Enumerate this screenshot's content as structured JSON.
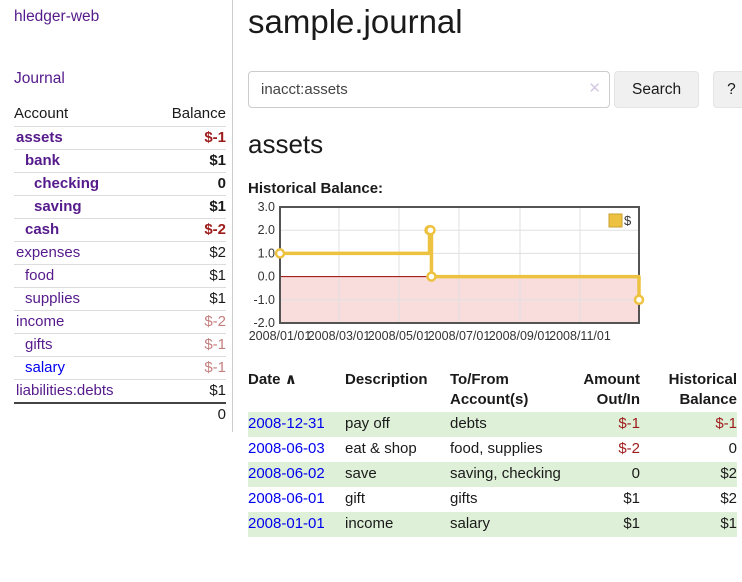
{
  "app": {
    "brand": "hledger-web"
  },
  "sidebar": {
    "journal_link": "Journal",
    "accounts_table": {
      "account_header": "Account",
      "balance_header": "Balance",
      "rows": [
        {
          "name": "assets",
          "balance": "$-1",
          "indent": 1,
          "bold": true
        },
        {
          "name": "bank",
          "balance": "$1",
          "indent": 2,
          "bold": true
        },
        {
          "name": "checking",
          "balance": "0",
          "indent": 3,
          "bold": true
        },
        {
          "name": "saving",
          "balance": "$1",
          "indent": 3,
          "bold": true
        },
        {
          "name": "cash",
          "balance": "$-2",
          "indent": 2,
          "bold": true
        },
        {
          "name": "expenses",
          "balance": "$2",
          "indent": 1,
          "bold": false
        },
        {
          "name": "food",
          "balance": "$1",
          "indent": 2,
          "bold": false
        },
        {
          "name": "supplies",
          "balance": "$1",
          "indent": 2,
          "bold": false
        },
        {
          "name": "income",
          "balance": "$-2",
          "indent": 1,
          "bold": false
        },
        {
          "name": "gifts",
          "balance": "$-1",
          "indent": 2,
          "bold": false
        },
        {
          "name": "salary",
          "balance": "$-1",
          "indent": 2,
          "bold": false,
          "unvisited": true
        },
        {
          "name": "liabilities:debts",
          "balance": "$1",
          "indent": 1,
          "bold": false
        }
      ],
      "total": "0"
    }
  },
  "header": {
    "title": "sample.journal"
  },
  "search": {
    "query": "inacct:assets",
    "clear_icon": "✕",
    "button_label": "Search",
    "help_label": "?"
  },
  "account_view": {
    "title": "assets",
    "chart_label": "Historical Balance:"
  },
  "chart_data": {
    "type": "line",
    "title": "Historical Balance",
    "ylim": [
      -2,
      3
    ],
    "yticks": [
      3.0,
      2.0,
      1.0,
      0.0,
      -1.0,
      -2.0
    ],
    "x_span_days": 365,
    "xticks": [
      {
        "label": "2008/01/01",
        "day": 0
      },
      {
        "label": "2008/03/01",
        "day": 60
      },
      {
        "label": "2008/05/01",
        "day": 121
      },
      {
        "label": "2008/07/01",
        "day": 182
      },
      {
        "label": "2008/09/01",
        "day": 244
      },
      {
        "label": "2008/11/01",
        "day": 305
      }
    ],
    "series": [
      {
        "name": "$",
        "color": "#edc240",
        "step": true,
        "points": [
          {
            "date": "2008-01-01",
            "day": 0,
            "value": 1
          },
          {
            "date": "2008-06-01",
            "day": 152,
            "value": 2
          },
          {
            "date": "2008-06-02",
            "day": 153,
            "value": 2
          },
          {
            "date": "2008-06-03",
            "day": 154,
            "value": 0
          },
          {
            "date": "2008-12-31",
            "day": 365,
            "value": -1
          }
        ]
      }
    ],
    "legend_position": "top-right",
    "grid": true,
    "negative_region_fill": "#f9dddd",
    "zero_line_color": "#990000"
  },
  "register_table": {
    "sort_icon": "∧",
    "headers": {
      "date": "Date",
      "description": "Description",
      "account": "To/From Account(s)",
      "amount": "Amount Out/In",
      "balance": "Historical Balance"
    },
    "rows": [
      {
        "date": "2008-12-31",
        "description": "pay off",
        "accounts": "debts",
        "amount": "$-1",
        "balance": "$-1"
      },
      {
        "date": "2008-06-03",
        "description": "eat & shop",
        "accounts": "food, supplies",
        "amount": "$-2",
        "balance": "0"
      },
      {
        "date": "2008-06-02",
        "description": "save",
        "accounts": "saving, checking",
        "amount": "0",
        "balance": "$2"
      },
      {
        "date": "2008-06-01",
        "description": "gift",
        "accounts": "gifts",
        "amount": "$1",
        "balance": "$2"
      },
      {
        "date": "2008-01-01",
        "description": "income",
        "accounts": "salary",
        "amount": "$1",
        "balance": "$1"
      }
    ]
  },
  "colors": {
    "link_purple": "#551a8b",
    "link_blue": "#0000ee",
    "negative_strong": "#9e1b1b",
    "negative_soft": "#c47f7f",
    "row_stripe_green": "#dff0d8",
    "chart_line": "#edc240"
  }
}
